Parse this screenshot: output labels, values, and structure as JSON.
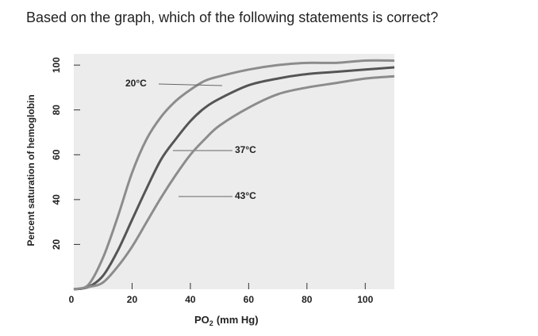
{
  "question": "Based on the graph, which of the following statements is correct?",
  "chart_data": {
    "type": "line",
    "y_label": "Percent saturation of hemoglobin",
    "x_label": "PO",
    "x_label_sub": "2",
    "x_label_unit": "(mm Hg)",
    "x": [
      0,
      5,
      10,
      15,
      20,
      25,
      30,
      35,
      40,
      45,
      50,
      60,
      70,
      80,
      90,
      100,
      110
    ],
    "series": [
      {
        "name": "20°C",
        "color": "#8c8c8c",
        "values": [
          0,
          2,
          14,
          32,
          52,
          67,
          77,
          84,
          89,
          93,
          95,
          98,
          100,
          101,
          101,
          102,
          102
        ]
      },
      {
        "name": "37°C",
        "color": "#555555",
        "values": [
          0,
          1,
          6,
          17,
          31,
          45,
          58,
          67,
          75,
          81,
          85,
          91,
          94,
          96,
          97,
          98,
          99
        ]
      },
      {
        "name": "43°C",
        "color": "#8c8c8c",
        "values": [
          0,
          1,
          3,
          10,
          19,
          30,
          41,
          51,
          60,
          67,
          73,
          81,
          87,
          90,
          92,
          94,
          95
        ]
      }
    ],
    "xlim": [
      0,
      110
    ],
    "ylim": [
      0,
      105
    ],
    "xticks": [
      0,
      20,
      40,
      60,
      80,
      100
    ],
    "yticks": [
      20,
      40,
      60,
      80,
      100
    ]
  }
}
